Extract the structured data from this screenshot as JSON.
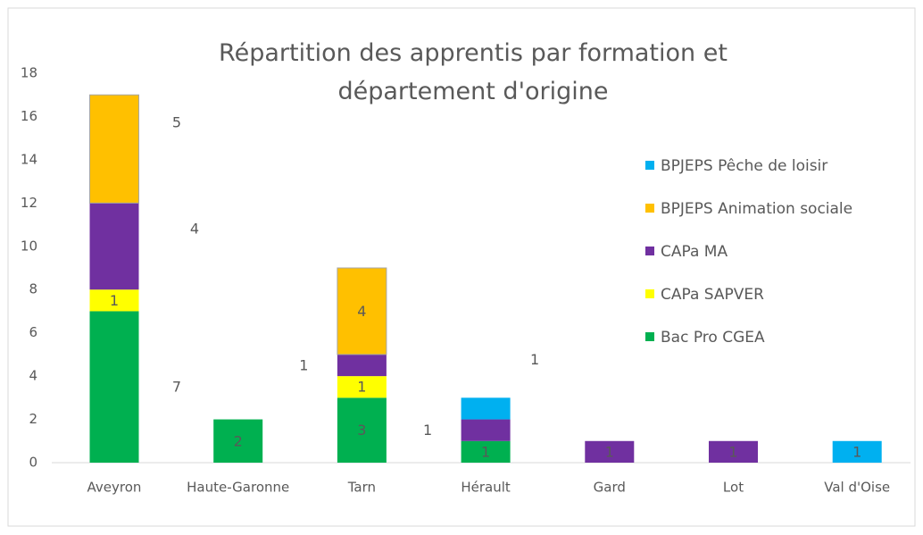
{
  "chart_data": {
    "type": "bar",
    "stacked": true,
    "title": "Répartition des apprentis par formation et département d'origine",
    "categories": [
      "Aveyron",
      "Haute-Garonne",
      "Tarn",
      "Hérault",
      "Gard",
      "Lot",
      "Val d'Oise"
    ],
    "series": [
      {
        "name": "Bac Pro  CGEA",
        "color": "#00b050",
        "values": [
          7,
          2,
          3,
          1,
          0,
          0,
          0
        ]
      },
      {
        "name": "CAPa SAPVER",
        "color": "#ffff00",
        "values": [
          1,
          0,
          1,
          0,
          0,
          0,
          0
        ]
      },
      {
        "name": "CAPa MA",
        "color": "#7030a0",
        "values": [
          4,
          0,
          1,
          1,
          1,
          1,
          0
        ]
      },
      {
        "name": "BPJEPS Animation sociale",
        "color": "#ffc000",
        "values": [
          5,
          0,
          4,
          0,
          0,
          0,
          0
        ]
      },
      {
        "name": "BPJEPS Pêche de loisir",
        "color": "#00b0f0",
        "values": [
          0,
          0,
          0,
          1,
          0,
          0,
          1
        ]
      }
    ],
    "ylim": [
      0,
      18
    ],
    "yticks": [
      0,
      2,
      4,
      6,
      8,
      10,
      12,
      14,
      16,
      18
    ],
    "grid": false,
    "legend": "right"
  }
}
